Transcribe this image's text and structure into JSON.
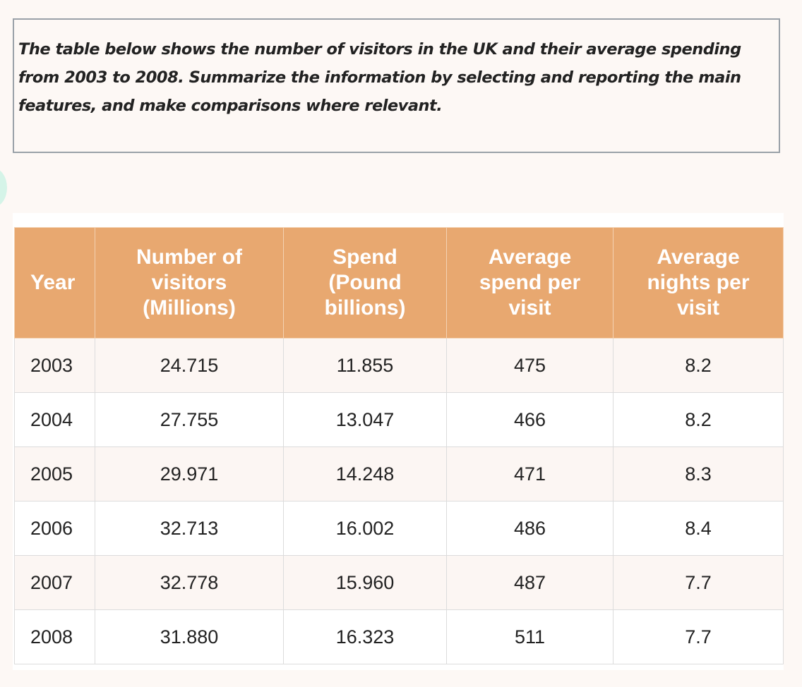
{
  "prompt": {
    "line1": "The table below shows the number of visitors in the UK and their average spending",
    "line2": "from 2003 to 2008. Summarize the information by selecting and reporting the main",
    "line3": "features, and make comparisons where relevant."
  },
  "colors": {
    "header_background": "#e8a870",
    "header_text": "#ffffff",
    "odd_row_background": "#fcf6f3",
    "even_row_background": "#ffffff",
    "page_background": "#fdf8f5",
    "prompt_border": "#9aa1a8"
  },
  "chart_data": {
    "type": "table",
    "headers": {
      "year": "Year",
      "visitors": [
        "Number of",
        "visitors",
        "(Millions)"
      ],
      "spend": [
        "Spend",
        "(Pound",
        "billions)"
      ],
      "avg_spend": [
        "Average",
        "spend per",
        "visit"
      ],
      "avg_nights": [
        "Average",
        "nights per",
        "visit"
      ]
    },
    "rows": [
      {
        "year": "2003",
        "visitors": "24.715",
        "spend": "11.855",
        "avg_spend": "475",
        "avg_nights": "8.2"
      },
      {
        "year": "2004",
        "visitors": "27.755",
        "spend": "13.047",
        "avg_spend": "466",
        "avg_nights": "8.2"
      },
      {
        "year": "2005",
        "visitors": "29.971",
        "spend": "14.248",
        "avg_spend": "471",
        "avg_nights": "8.3"
      },
      {
        "year": "2006",
        "visitors": "32.713",
        "spend": "16.002",
        "avg_spend": "486",
        "avg_nights": "8.4"
      },
      {
        "year": "2007",
        "visitors": "32.778",
        "spend": "15.960",
        "avg_spend": "487",
        "avg_nights": "7.7"
      },
      {
        "year": "2008",
        "visitors": "31.880",
        "spend": "16.323",
        "avg_spend": "511",
        "avg_nights": "7.7"
      }
    ]
  }
}
